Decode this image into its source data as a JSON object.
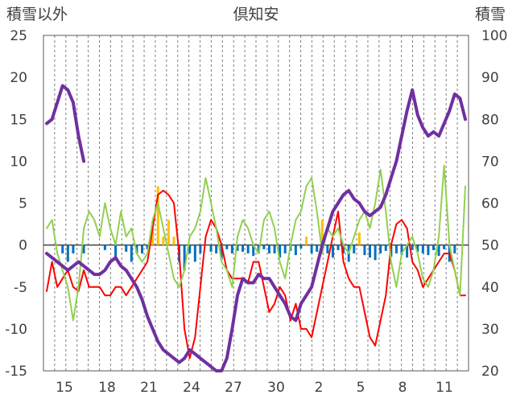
{
  "chart_data": {
    "type": "line",
    "title": "倶知安",
    "ylabel_left": "積雪以外",
    "ylabel_right": "積雪",
    "x_ticks": [
      "15",
      "18",
      "21",
      "24",
      "27",
      "30",
      "2",
      "5",
      "8",
      "11"
    ],
    "y_left": {
      "min": -15,
      "max": 25,
      "ticks": [
        25,
        20,
        15,
        10,
        5,
        0,
        -5,
        -10,
        -15
      ]
    },
    "y_right": {
      "min": 20,
      "max": 100,
      "ticks": [
        100,
        90,
        80,
        70,
        60,
        50,
        40,
        30,
        20
      ]
    },
    "grid": {
      "vertical_dashed": true,
      "horizontal": false
    },
    "series": [
      {
        "axis": "left",
        "color": "#ff0000",
        "points": [
          [
            0,
            -5.5
          ],
          [
            1,
            -2
          ],
          [
            2,
            -5
          ],
          [
            3,
            -4
          ],
          [
            4,
            -3
          ],
          [
            5,
            -5
          ],
          [
            6,
            -5.5
          ],
          [
            7,
            -3
          ],
          [
            8,
            -5
          ],
          [
            9,
            -5
          ],
          [
            10,
            -5
          ],
          [
            11,
            -6
          ],
          [
            12,
            -6
          ],
          [
            13,
            -5
          ],
          [
            14,
            -5
          ],
          [
            15,
            -6
          ],
          [
            16,
            -5
          ],
          [
            17,
            -4
          ],
          [
            18,
            -3
          ],
          [
            19,
            -2
          ],
          [
            20,
            2
          ],
          [
            21,
            6
          ],
          [
            22,
            6.5
          ],
          [
            23,
            6
          ],
          [
            24,
            5
          ],
          [
            25,
            -1
          ],
          [
            26,
            -10
          ],
          [
            27,
            -13.5
          ],
          [
            28,
            -11
          ],
          [
            29,
            -5
          ],
          [
            30,
            1
          ],
          [
            31,
            3
          ],
          [
            32,
            2
          ],
          [
            33,
            0
          ],
          [
            34,
            -3
          ],
          [
            35,
            -4
          ],
          [
            36,
            -4
          ],
          [
            37,
            -4
          ],
          [
            38,
            -4.5
          ],
          [
            39,
            -2
          ],
          [
            40,
            -2
          ],
          [
            41,
            -5
          ],
          [
            42,
            -8
          ],
          [
            43,
            -7
          ],
          [
            44,
            -5
          ],
          [
            45,
            -6
          ],
          [
            46,
            -9
          ],
          [
            47,
            -7
          ],
          [
            48,
            -10
          ],
          [
            49,
            -10
          ],
          [
            50,
            -11
          ],
          [
            51,
            -8
          ],
          [
            52,
            -5
          ],
          [
            53,
            -2
          ],
          [
            54,
            1
          ],
          [
            55,
            4
          ],
          [
            56,
            -2
          ],
          [
            57,
            -4
          ],
          [
            58,
            -5
          ],
          [
            59,
            -5
          ],
          [
            60,
            -8
          ],
          [
            61,
            -11
          ],
          [
            62,
            -12
          ],
          [
            63,
            -9
          ],
          [
            64,
            -6
          ],
          [
            65,
            0
          ],
          [
            66,
            2.5
          ],
          [
            67,
            3
          ],
          [
            68,
            2
          ],
          [
            69,
            -2
          ],
          [
            70,
            -3
          ],
          [
            71,
            -5
          ],
          [
            72,
            -4
          ],
          [
            73,
            -3
          ],
          [
            74,
            -2
          ],
          [
            75,
            -1
          ],
          [
            76,
            -1
          ],
          [
            77,
            -3
          ],
          [
            78,
            -6
          ],
          [
            79,
            -6
          ]
        ]
      },
      {
        "axis": "left",
        "color": "#92d050",
        "points": [
          [
            0,
            2
          ],
          [
            1,
            3
          ],
          [
            2,
            -1
          ],
          [
            3,
            -3
          ],
          [
            4,
            -5
          ],
          [
            5,
            -9
          ],
          [
            6,
            -5
          ],
          [
            7,
            2
          ],
          [
            8,
            4
          ],
          [
            9,
            3
          ],
          [
            10,
            1
          ],
          [
            11,
            5
          ],
          [
            12,
            2
          ],
          [
            13,
            0
          ],
          [
            14,
            4
          ],
          [
            15,
            1
          ],
          [
            16,
            2
          ],
          [
            17,
            -1
          ],
          [
            18,
            -2
          ],
          [
            19,
            -1
          ],
          [
            20,
            3
          ],
          [
            21,
            5
          ],
          [
            22,
            2
          ],
          [
            23,
            -1
          ],
          [
            24,
            -4
          ],
          [
            25,
            -5
          ],
          [
            26,
            -3
          ],
          [
            27,
            1
          ],
          [
            28,
            2
          ],
          [
            29,
            4
          ],
          [
            30,
            8
          ],
          [
            31,
            5
          ],
          [
            32,
            2
          ],
          [
            33,
            -2
          ],
          [
            34,
            -3
          ],
          [
            35,
            -5
          ],
          [
            36,
            1
          ],
          [
            37,
            3
          ],
          [
            38,
            2
          ],
          [
            39,
            0
          ],
          [
            40,
            -1
          ],
          [
            41,
            3
          ],
          [
            42,
            4
          ],
          [
            43,
            2
          ],
          [
            44,
            -2
          ],
          [
            45,
            -4
          ],
          [
            46,
            0
          ],
          [
            47,
            3
          ],
          [
            48,
            4
          ],
          [
            49,
            7
          ],
          [
            50,
            8
          ],
          [
            51,
            4
          ],
          [
            52,
            -1
          ],
          [
            53,
            2
          ],
          [
            54,
            1
          ],
          [
            55,
            2
          ],
          [
            56,
            0
          ],
          [
            57,
            -1
          ],
          [
            58,
            1
          ],
          [
            59,
            3
          ],
          [
            60,
            4
          ],
          [
            61,
            2
          ],
          [
            62,
            5
          ],
          [
            63,
            9
          ],
          [
            64,
            4
          ],
          [
            65,
            -2
          ],
          [
            66,
            -5
          ],
          [
            67,
            -1
          ],
          [
            68,
            0
          ],
          [
            69,
            1
          ],
          [
            70,
            -1
          ],
          [
            71,
            -4
          ],
          [
            72,
            -5
          ],
          [
            73,
            -3
          ],
          [
            74,
            1
          ],
          [
            75,
            9.5
          ],
          [
            76,
            0
          ],
          [
            77,
            -3
          ],
          [
            78,
            -6
          ],
          [
            79,
            7
          ]
        ]
      },
      {
        "axis": "right",
        "color": "#7030a0",
        "segments": [
          [
            [
              0,
              48
            ],
            [
              1,
              47
            ],
            [
              2,
              46
            ],
            [
              3,
              45
            ],
            [
              4,
              44
            ],
            [
              5,
              45
            ],
            [
              6,
              46
            ],
            [
              7,
              45
            ],
            [
              8,
              44
            ],
            [
              9,
              43
            ],
            [
              10,
              43
            ],
            [
              11,
              44
            ],
            [
              12,
              46
            ],
            [
              13,
              47
            ],
            [
              14,
              45
            ],
            [
              15,
              44
            ],
            [
              16,
              42
            ],
            [
              17,
              40
            ],
            [
              18,
              37
            ],
            [
              19,
              33
            ],
            [
              20,
              30
            ],
            [
              21,
              27
            ],
            [
              22,
              25
            ],
            [
              23,
              24
            ],
            [
              24,
              23
            ],
            [
              25,
              22
            ],
            [
              26,
              23
            ],
            [
              27,
              25
            ],
            [
              28,
              24
            ],
            [
              29,
              23
            ],
            [
              30,
              22
            ],
            [
              31,
              21
            ],
            [
              32,
              20
            ],
            [
              33,
              20
            ],
            [
              34,
              23
            ],
            [
              35,
              30
            ],
            [
              36,
              38
            ],
            [
              37,
              42
            ],
            [
              38,
              41
            ],
            [
              39,
              41
            ],
            [
              40,
              43
            ],
            [
              41,
              42
            ],
            [
              42,
              42
            ],
            [
              43,
              40
            ],
            [
              44,
              38
            ],
            [
              45,
              36
            ],
            [
              46,
              33
            ],
            [
              47,
              32
            ],
            [
              48,
              36
            ],
            [
              49,
              38
            ],
            [
              50,
              40
            ],
            [
              51,
              45
            ],
            [
              52,
              50
            ],
            [
              53,
              54
            ],
            [
              54,
              58
            ],
            [
              55,
              60
            ],
            [
              56,
              62
            ],
            [
              57,
              63
            ],
            [
              58,
              61
            ],
            [
              59,
              60
            ],
            [
              60,
              58
            ],
            [
              61,
              57
            ],
            [
              62,
              58
            ],
            [
              63,
              59
            ],
            [
              64,
              62
            ],
            [
              65,
              66
            ],
            [
              66,
              70
            ],
            [
              67,
              76
            ],
            [
              68,
              82
            ],
            [
              69,
              87
            ],
            [
              70,
              81
            ],
            [
              71,
              78
            ],
            [
              72,
              76
            ],
            [
              73,
              77
            ],
            [
              74,
              76
            ],
            [
              75,
              79
            ],
            [
              76,
              82
            ],
            [
              77,
              86
            ],
            [
              78,
              85
            ],
            [
              79,
              80
            ]
          ],
          [
            [
              0,
              79
            ],
            [
              1,
              80
            ],
            [
              2,
              84
            ],
            [
              3,
              88
            ],
            [
              4,
              87
            ],
            [
              5,
              84
            ],
            [
              6,
              76
            ],
            [
              7,
              70
            ]
          ]
        ]
      }
    ],
    "bars": {
      "axis": "left",
      "negative_color": "#0070c0",
      "positive_color": "#ffc000",
      "note": "daily precipitation-type bars around zero"
    }
  }
}
